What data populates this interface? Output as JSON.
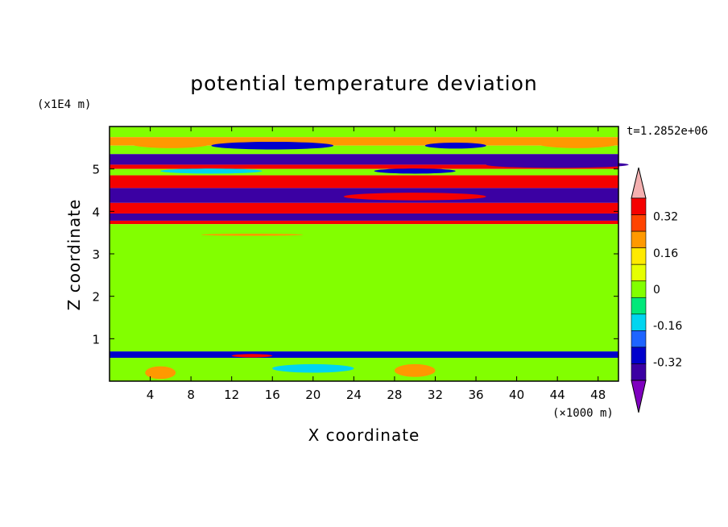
{
  "chart_data": {
    "type": "heatmap",
    "title": "potential temperature deviation",
    "xlabel": "X coordinate",
    "ylabel": "Z coordinate",
    "x_unit": "(×1000 m)",
    "y_unit": "(x1E4 m)",
    "time_label": "t=1.2852e+06",
    "xlim": [
      0,
      50
    ],
    "ylim": [
      0,
      6
    ],
    "x_ticks": [
      "4",
      "8",
      "12",
      "16",
      "20",
      "24",
      "28",
      "32",
      "36",
      "40",
      "44",
      "48"
    ],
    "x_tick_values": [
      4,
      8,
      12,
      16,
      20,
      24,
      28,
      32,
      36,
      40,
      44,
      48
    ],
    "y_ticks": [
      "1",
      "2",
      "3",
      "4",
      "5"
    ],
    "y_tick_values": [
      1,
      2,
      3,
      4,
      5
    ],
    "colorbar": {
      "levels": [
        -0.4,
        -0.32,
        -0.24,
        -0.16,
        -0.08,
        0,
        0.08,
        0.16,
        0.24,
        0.32,
        0.4
      ],
      "colors": [
        "#7f00bf",
        "#3b00a3",
        "#0000cc",
        "#1e64ff",
        "#00d5f0",
        "#00e87a",
        "#82ff00",
        "#e6ff00",
        "#ffea00",
        "#ff9900",
        "#ff4400",
        "#f50000",
        "#f4b0b0"
      ],
      "labels": [
        "0.32",
        "0.16",
        "0",
        "-0.16",
        "-0.32"
      ],
      "label_values": [
        0.32,
        0.16,
        0,
        -0.16,
        -0.32
      ]
    },
    "bands": [
      {
        "z": [
          5.75,
          6.0
        ],
        "value": 0.0
      },
      {
        "z": [
          5.55,
          5.75
        ],
        "value": 0.28
      },
      {
        "z": [
          5.35,
          5.55
        ],
        "value": 0.0
      },
      {
        "z": [
          5.1,
          5.35
        ],
        "value": -0.4
      },
      {
        "z": [
          5.0,
          5.1
        ],
        "value": 0.4
      },
      {
        "z": [
          4.85,
          5.0
        ],
        "value": 0.0
      },
      {
        "z": [
          4.55,
          4.85
        ],
        "value": 0.4
      },
      {
        "z": [
          4.2,
          4.55
        ],
        "value": -0.4
      },
      {
        "z": [
          3.95,
          4.2
        ],
        "value": 0.4
      },
      {
        "z": [
          3.78,
          3.95
        ],
        "value": -0.4
      },
      {
        "z": [
          3.7,
          3.78
        ],
        "value": 0.4
      },
      {
        "z": [
          3.0,
          3.7
        ],
        "value": 0.05
      },
      {
        "z": [
          0.7,
          3.0
        ],
        "value": 0.0
      },
      {
        "z": [
          0.55,
          0.7
        ],
        "value": -0.3
      },
      {
        "z": [
          0.0,
          0.55
        ],
        "value": 0.0
      }
    ],
    "features": [
      {
        "x": 16,
        "z": 5.55,
        "w": 12,
        "h": 0.18,
        "value": -0.3
      },
      {
        "x": 34,
        "z": 5.55,
        "w": 6,
        "h": 0.14,
        "value": -0.3
      },
      {
        "x": 6,
        "z": 5.6,
        "w": 8,
        "h": 0.22,
        "value": 0.3
      },
      {
        "x": 46,
        "z": 5.6,
        "w": 8,
        "h": 0.22,
        "value": 0.3
      },
      {
        "x": 10,
        "z": 4.95,
        "w": 10,
        "h": 0.12,
        "value": -0.12
      },
      {
        "x": 30,
        "z": 4.95,
        "w": 8,
        "h": 0.12,
        "value": -0.3
      },
      {
        "x": 44,
        "z": 5.1,
        "w": 14,
        "h": 0.15,
        "value": -0.4
      },
      {
        "x": 30,
        "z": 4.35,
        "w": 14,
        "h": 0.18,
        "value": 0.4
      },
      {
        "x": 14,
        "z": 3.45,
        "w": 10,
        "h": 0.05,
        "value": 0.3
      },
      {
        "x": 5,
        "z": 0.2,
        "w": 3,
        "h": 0.3,
        "value": 0.28
      },
      {
        "x": 30,
        "z": 0.25,
        "w": 4,
        "h": 0.3,
        "value": 0.28
      },
      {
        "x": 20,
        "z": 0.3,
        "w": 8,
        "h": 0.2,
        "value": -0.1
      },
      {
        "x": 14,
        "z": 0.6,
        "w": 4,
        "h": 0.08,
        "value": 0.4
      }
    ]
  }
}
